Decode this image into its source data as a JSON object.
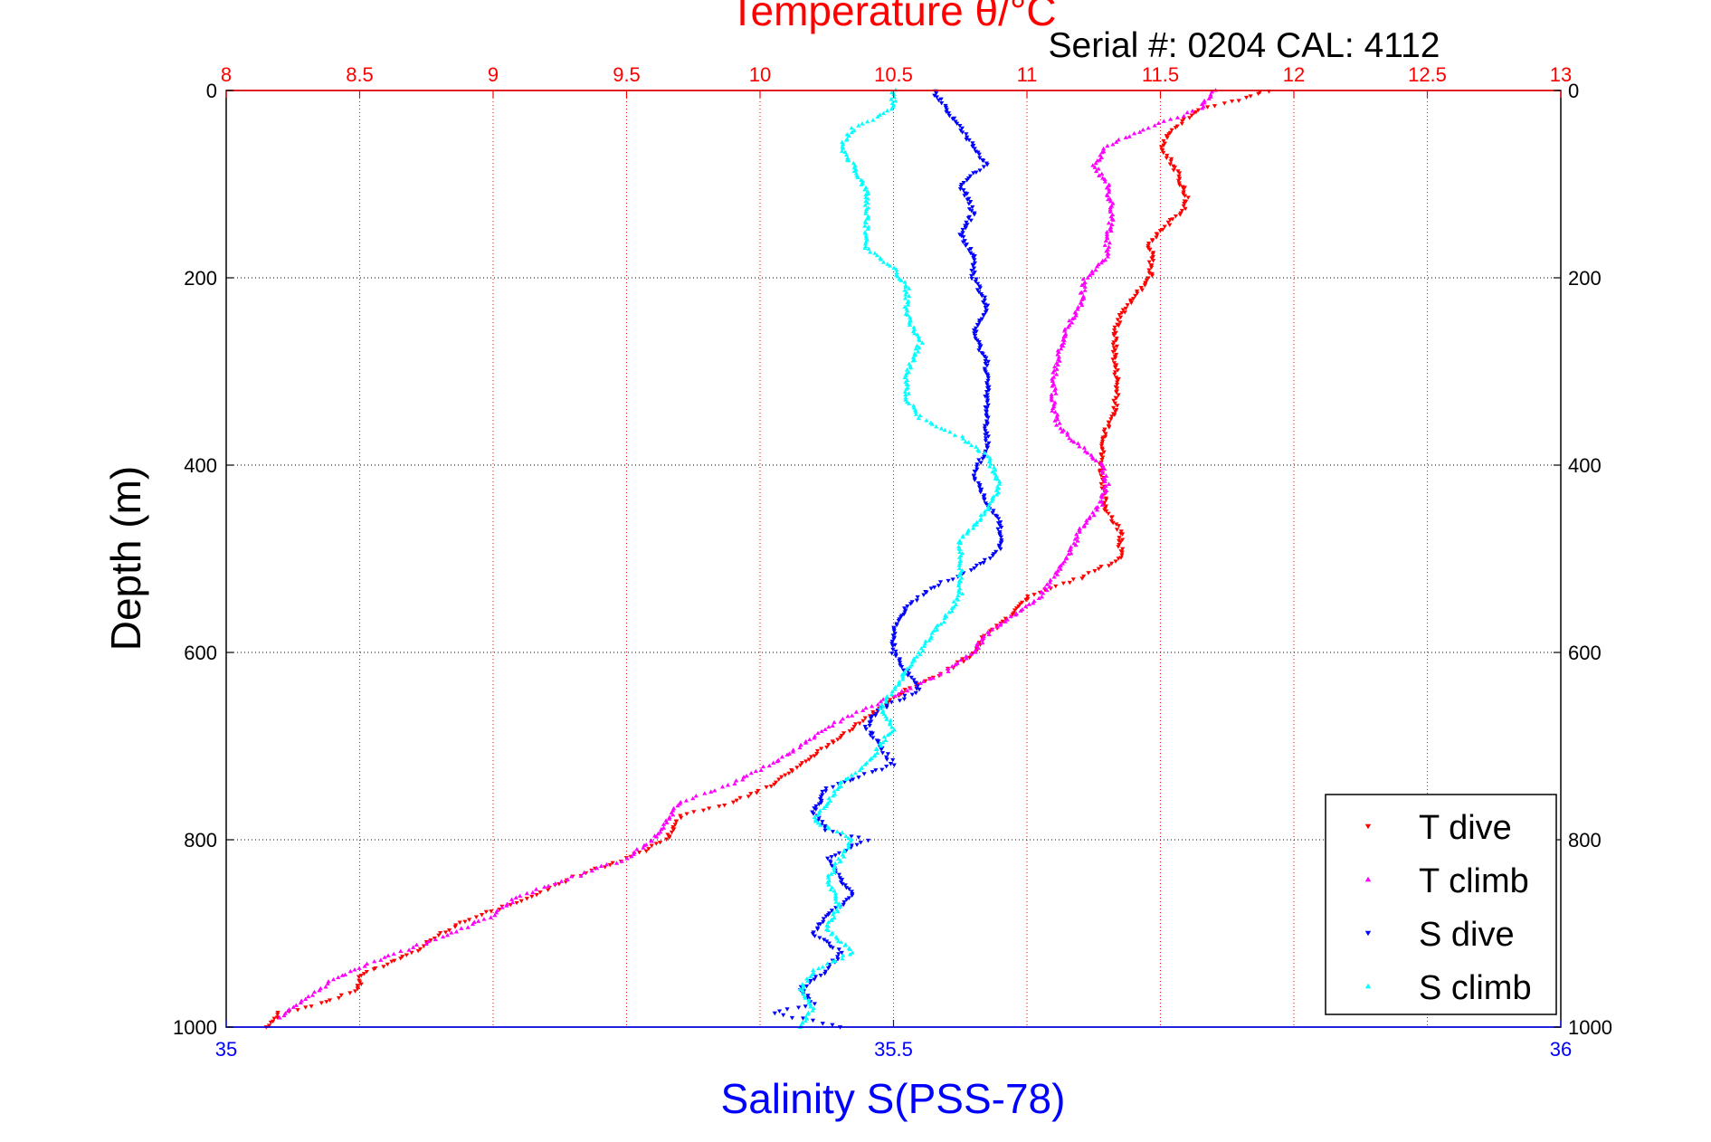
{
  "chart_data": {
    "type": "scatter",
    "title": "Temperature θ/°C",
    "subtitle": "Serial #: 0204  CAL: 4112",
    "ylabel": "Depth (m)",
    "xlabel": "Salinity S(PSS-78)",
    "y_axis": {
      "label": "Depth (m)",
      "range": [
        0,
        1000
      ],
      "reversed": true,
      "ticks": [
        "0",
        "200",
        "400",
        "600",
        "800",
        "1000"
      ],
      "tick_values": [
        0,
        200,
        400,
        600,
        800,
        1000
      ]
    },
    "temperature_axis": {
      "position": "top",
      "color": "#ff0000",
      "range": [
        8,
        13
      ],
      "ticks": [
        "8",
        "8.5",
        "9",
        "9.5",
        "10",
        "10.5",
        "11",
        "11.5",
        "12",
        "12.5",
        "13"
      ],
      "tick_values": [
        8,
        8.5,
        9,
        9.5,
        10,
        10.5,
        11,
        11.5,
        12,
        12.5,
        13
      ]
    },
    "salinity_axis": {
      "position": "bottom",
      "color": "#0000ff",
      "range": [
        35,
        36
      ],
      "ticks": [
        "35",
        "35.5",
        "36"
      ],
      "tick_values": [
        35,
        35.5,
        36
      ]
    },
    "grid": true,
    "legend": {
      "placement": "bottom-right",
      "entries": [
        "T dive",
        "T climb",
        "S dive",
        "S climb"
      ]
    },
    "series": [
      {
        "name": "T dive",
        "axis": "temperature",
        "color": "#ff0000",
        "marker": "triangle-down",
        "points": [
          [
            11.9,
            0
          ],
          [
            11.8,
            10
          ],
          [
            11.65,
            20
          ],
          [
            11.55,
            40
          ],
          [
            11.5,
            60
          ],
          [
            11.55,
            80
          ],
          [
            11.58,
            100
          ],
          [
            11.6,
            115
          ],
          [
            11.58,
            130
          ],
          [
            11.5,
            150
          ],
          [
            11.45,
            165
          ],
          [
            11.47,
            175
          ],
          [
            11.46,
            200
          ],
          [
            11.42,
            215
          ],
          [
            11.35,
            240
          ],
          [
            11.33,
            260
          ],
          [
            11.33,
            290
          ],
          [
            11.34,
            310
          ],
          [
            11.33,
            340
          ],
          [
            11.3,
            360
          ],
          [
            11.28,
            390
          ],
          [
            11.28,
            420
          ],
          [
            11.3,
            450
          ],
          [
            11.35,
            470
          ],
          [
            11.35,
            500
          ],
          [
            11.2,
            520
          ],
          [
            11.0,
            540
          ],
          [
            10.95,
            560
          ],
          [
            10.85,
            580
          ],
          [
            10.8,
            600
          ],
          [
            10.7,
            620
          ],
          [
            10.55,
            640
          ],
          [
            10.45,
            660
          ],
          [
            10.3,
            690
          ],
          [
            10.2,
            710
          ],
          [
            10.05,
            740
          ],
          [
            9.9,
            760
          ],
          [
            9.7,
            775
          ],
          [
            9.65,
            800
          ],
          [
            9.5,
            820
          ],
          [
            9.3,
            840
          ],
          [
            9.15,
            860
          ],
          [
            8.95,
            880
          ],
          [
            8.8,
            900
          ],
          [
            8.7,
            920
          ],
          [
            8.5,
            945
          ],
          [
            8.5,
            960
          ],
          [
            8.35,
            975
          ],
          [
            8.2,
            985
          ],
          [
            8.15,
            1000
          ]
        ]
      },
      {
        "name": "T climb",
        "axis": "temperature",
        "color": "#ff00ff",
        "marker": "triangle-up",
        "points": [
          [
            11.7,
            0
          ],
          [
            11.65,
            20
          ],
          [
            11.45,
            40
          ],
          [
            11.3,
            60
          ],
          [
            11.25,
            80
          ],
          [
            11.3,
            100
          ],
          [
            11.32,
            130
          ],
          [
            11.3,
            165
          ],
          [
            11.3,
            180
          ],
          [
            11.22,
            200
          ],
          [
            11.2,
            230
          ],
          [
            11.15,
            255
          ],
          [
            11.12,
            280
          ],
          [
            11.1,
            310
          ],
          [
            11.1,
            340
          ],
          [
            11.12,
            360
          ],
          [
            11.2,
            380
          ],
          [
            11.28,
            400
          ],
          [
            11.3,
            420
          ],
          [
            11.28,
            440
          ],
          [
            11.2,
            470
          ],
          [
            11.15,
            500
          ],
          [
            11.1,
            520
          ],
          [
            11.05,
            540
          ],
          [
            10.95,
            560
          ],
          [
            10.85,
            580
          ],
          [
            10.8,
            600
          ],
          [
            10.7,
            620
          ],
          [
            10.55,
            640
          ],
          [
            10.4,
            660
          ],
          [
            10.25,
            680
          ],
          [
            10.1,
            710
          ],
          [
            9.9,
            740
          ],
          [
            9.7,
            760
          ],
          [
            9.65,
            780
          ],
          [
            9.6,
            800
          ],
          [
            9.5,
            820
          ],
          [
            9.3,
            840
          ],
          [
            9.1,
            860
          ],
          [
            9.0,
            880
          ],
          [
            8.85,
            900
          ],
          [
            8.7,
            915
          ],
          [
            8.55,
            930
          ],
          [
            8.4,
            950
          ],
          [
            8.3,
            970
          ],
          [
            8.2,
            990
          ]
        ]
      },
      {
        "name": "S dive",
        "axis": "salinity",
        "color": "#0000ff",
        "marker": "triangle-down",
        "points": [
          [
            35.53,
            0
          ],
          [
            35.54,
            20
          ],
          [
            35.55,
            40
          ],
          [
            35.56,
            60
          ],
          [
            35.57,
            80
          ],
          [
            35.55,
            100
          ],
          [
            35.56,
            130
          ],
          [
            35.55,
            155
          ],
          [
            35.56,
            175
          ],
          [
            35.56,
            200
          ],
          [
            35.57,
            230
          ],
          [
            35.56,
            260
          ],
          [
            35.57,
            290
          ],
          [
            35.57,
            320
          ],
          [
            35.57,
            350
          ],
          [
            35.57,
            380
          ],
          [
            35.56,
            410
          ],
          [
            35.57,
            440
          ],
          [
            35.58,
            460
          ],
          [
            35.58,
            490
          ],
          [
            35.56,
            510
          ],
          [
            35.53,
            530
          ],
          [
            35.51,
            550
          ],
          [
            35.5,
            575
          ],
          [
            35.5,
            600
          ],
          [
            35.51,
            620
          ],
          [
            35.52,
            640
          ],
          [
            35.49,
            660
          ],
          [
            35.48,
            680
          ],
          [
            35.49,
            700
          ],
          [
            35.5,
            720
          ],
          [
            35.45,
            745
          ],
          [
            35.44,
            770
          ],
          [
            35.45,
            790
          ],
          [
            35.48,
            800
          ],
          [
            35.45,
            820
          ],
          [
            35.46,
            840
          ],
          [
            35.47,
            860
          ],
          [
            35.45,
            880
          ],
          [
            35.44,
            900
          ],
          [
            35.46,
            920
          ],
          [
            35.45,
            940
          ],
          [
            35.43,
            960
          ],
          [
            35.44,
            975
          ],
          [
            35.41,
            985
          ],
          [
            35.46,
            1000
          ]
        ]
      },
      {
        "name": "S climb",
        "axis": "salinity",
        "color": "#00ffff",
        "marker": "triangle-up",
        "points": [
          [
            35.5,
            0
          ],
          [
            35.5,
            20
          ],
          [
            35.47,
            40
          ],
          [
            35.46,
            60
          ],
          [
            35.47,
            80
          ],
          [
            35.48,
            110
          ],
          [
            35.48,
            140
          ],
          [
            35.48,
            170
          ],
          [
            35.5,
            190
          ],
          [
            35.51,
            210
          ],
          [
            35.51,
            240
          ],
          [
            35.52,
            270
          ],
          [
            35.51,
            300
          ],
          [
            35.51,
            330
          ],
          [
            35.52,
            350
          ],
          [
            35.55,
            370
          ],
          [
            35.57,
            390
          ],
          [
            35.58,
            420
          ],
          [
            35.57,
            450
          ],
          [
            35.55,
            480
          ],
          [
            35.55,
            510
          ],
          [
            35.55,
            540
          ],
          [
            35.54,
            560
          ],
          [
            35.53,
            580
          ],
          [
            35.52,
            600
          ],
          [
            35.51,
            620
          ],
          [
            35.5,
            640
          ],
          [
            35.49,
            660
          ],
          [
            35.5,
            680
          ],
          [
            35.49,
            700
          ],
          [
            35.48,
            720
          ],
          [
            35.46,
            740
          ],
          [
            35.45,
            760
          ],
          [
            35.44,
            780
          ],
          [
            35.47,
            800
          ],
          [
            35.46,
            820
          ],
          [
            35.45,
            845
          ],
          [
            35.46,
            870
          ],
          [
            35.45,
            895
          ],
          [
            35.47,
            920
          ],
          [
            35.44,
            940
          ],
          [
            35.43,
            960
          ],
          [
            35.44,
            980
          ],
          [
            35.43,
            1000
          ]
        ]
      }
    ]
  },
  "colors": {
    "temperature": "#ff0000",
    "salinity": "#0000ff",
    "grid": "#666666"
  }
}
